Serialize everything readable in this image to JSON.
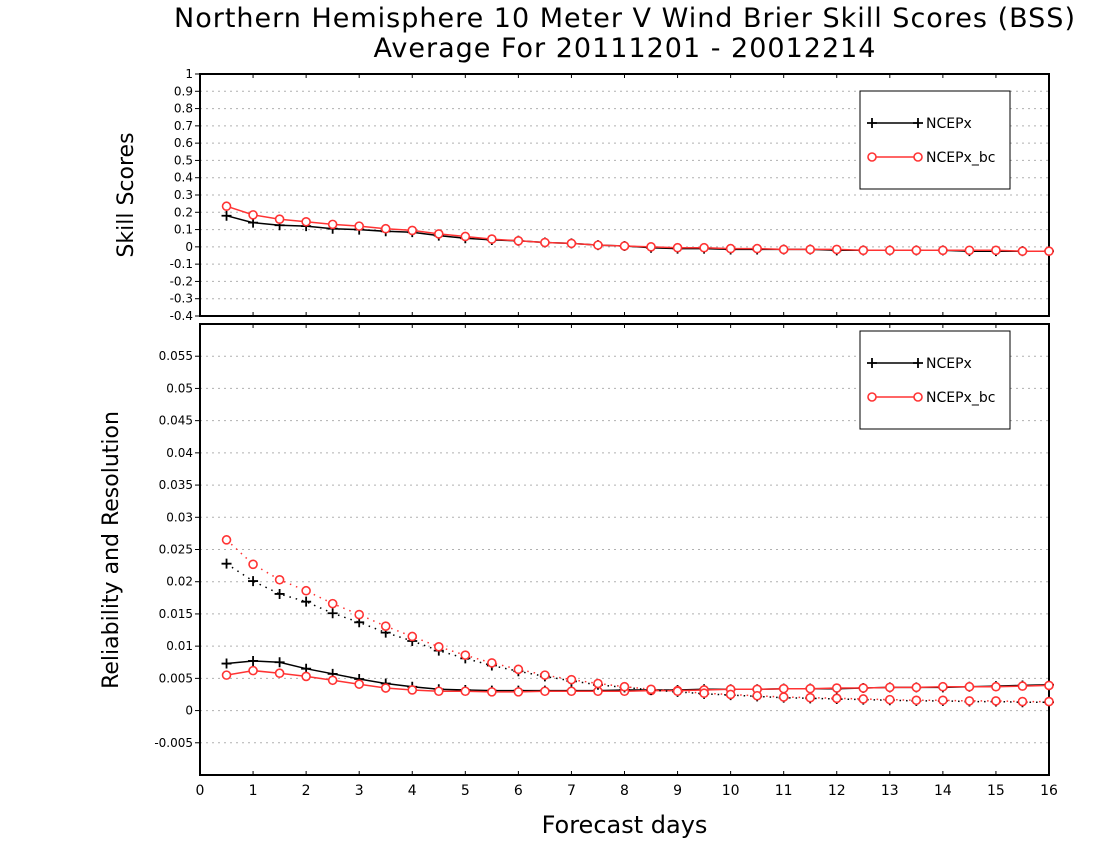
{
  "title_line1": "Northern Hemisphere 10 Meter V Wind Brier Skill Scores (BSS)",
  "title_line2": "Average For 20111201 - 20012214",
  "chart_data": [
    {
      "type": "line",
      "ylabel": "Skill Scores",
      "xlabel": "",
      "xlim": [
        0,
        16
      ],
      "ylim": [
        -0.4,
        1
      ],
      "yticks": [
        -0.4,
        -0.3,
        -0.2,
        -0.1,
        0,
        0.1,
        0.2,
        0.3,
        0.4,
        0.5,
        0.6,
        0.7,
        0.8,
        0.9,
        1
      ],
      "legend_position": "top-right",
      "x": [
        0.5,
        1,
        1.5,
        2,
        2.5,
        3,
        3.5,
        4,
        4.5,
        5,
        5.5,
        6,
        6.5,
        7,
        7.5,
        8,
        8.5,
        9,
        9.5,
        10,
        10.5,
        11,
        11.5,
        12,
        12.5,
        13,
        13.5,
        14,
        14.5,
        15,
        15.5,
        16
      ],
      "series": [
        {
          "name": "NCEPx",
          "color": "#000000",
          "marker": "plus",
          "style": "solid",
          "values": [
            0.18,
            0.14,
            0.125,
            0.12,
            0.105,
            0.1,
            0.09,
            0.085,
            0.065,
            0.05,
            0.04,
            0.035,
            0.025,
            0.02,
            0.01,
            0.005,
            -0.005,
            -0.01,
            -0.01,
            -0.015,
            -0.015,
            -0.015,
            -0.015,
            -0.02,
            -0.02,
            -0.02,
            -0.02,
            -0.02,
            -0.025,
            -0.025,
            -0.025,
            -0.025
          ]
        },
        {
          "name": "NCEPx_bc",
          "color": "#ff3333",
          "marker": "circle",
          "style": "solid",
          "values": [
            0.235,
            0.185,
            0.16,
            0.145,
            0.13,
            0.12,
            0.105,
            0.095,
            0.075,
            0.06,
            0.045,
            0.035,
            0.025,
            0.02,
            0.01,
            0.005,
            0.0,
            -0.005,
            -0.005,
            -0.01,
            -0.01,
            -0.015,
            -0.015,
            -0.015,
            -0.02,
            -0.02,
            -0.02,
            -0.02,
            -0.02,
            -0.02,
            -0.025,
            -0.025
          ]
        }
      ]
    },
    {
      "type": "line",
      "ylabel": "Reliability and Resolution",
      "xlabel": "Forecast days",
      "xlim": [
        0,
        16
      ],
      "ylim": [
        -0.01,
        0.06
      ],
      "yticks": [
        -0.005,
        0,
        0.005,
        0.01,
        0.015,
        0.02,
        0.025,
        0.03,
        0.035,
        0.04,
        0.045,
        0.05,
        0.055
      ],
      "xticks": [
        0,
        1,
        2,
        3,
        4,
        5,
        6,
        7,
        8,
        9,
        10,
        11,
        12,
        13,
        14,
        15,
        16
      ],
      "legend_position": "top-right",
      "x": [
        0.5,
        1,
        1.5,
        2,
        2.5,
        3,
        3.5,
        4,
        4.5,
        5,
        5.5,
        6,
        6.5,
        7,
        7.5,
        8,
        8.5,
        9,
        9.5,
        10,
        10.5,
        11,
        11.5,
        12,
        12.5,
        13,
        13.5,
        14,
        14.5,
        15,
        15.5,
        16
      ],
      "series": [
        {
          "name": "NCEPx",
          "color": "#000000",
          "marker": "plus",
          "style": "solid",
          "legend": true,
          "values": [
            0.0073,
            0.0077,
            0.0075,
            0.0065,
            0.0057,
            0.0049,
            0.0042,
            0.0037,
            0.0033,
            0.0032,
            0.0031,
            0.0031,
            0.0031,
            0.0031,
            0.0031,
            0.0032,
            0.0032,
            0.0032,
            0.0033,
            0.0033,
            0.0033,
            0.0034,
            0.0034,
            0.0034,
            0.0035,
            0.0036,
            0.0036,
            0.0036,
            0.0037,
            0.0038,
            0.0039,
            0.004
          ]
        },
        {
          "name": "NCEPx_bc",
          "color": "#ff3333",
          "marker": "circle",
          "style": "solid",
          "legend": true,
          "values": [
            0.0055,
            0.0062,
            0.0058,
            0.0053,
            0.0047,
            0.0041,
            0.0035,
            0.0032,
            0.003,
            0.003,
            0.0029,
            0.0029,
            0.003,
            0.003,
            0.003,
            0.003,
            0.0031,
            0.0031,
            0.0032,
            0.0033,
            0.0033,
            0.0034,
            0.0034,
            0.0035,
            0.0035,
            0.0036,
            0.0036,
            0.0037,
            0.0037,
            0.0037,
            0.0038,
            0.0039
          ]
        },
        {
          "name": "NCEPx",
          "color": "#000000",
          "marker": "plus",
          "style": "dotted",
          "legend": false,
          "values": [
            0.0228,
            0.0201,
            0.0181,
            0.0169,
            0.0151,
            0.0137,
            0.0121,
            0.0108,
            0.0093,
            0.0081,
            0.007,
            0.0061,
            0.0053,
            0.0046,
            0.004,
            0.0036,
            0.0032,
            0.0029,
            0.0026,
            0.0024,
            0.0022,
            0.002,
            0.0019,
            0.0018,
            0.0017,
            0.0016,
            0.0015,
            0.0015,
            0.0014,
            0.0014,
            0.0013,
            0.0013
          ]
        },
        {
          "name": "NCEPx_bc",
          "color": "#ff3333",
          "marker": "circle",
          "style": "dotted",
          "legend": false,
          "values": [
            0.0265,
            0.0227,
            0.0203,
            0.0186,
            0.0166,
            0.0149,
            0.0131,
            0.0115,
            0.0099,
            0.0086,
            0.0074,
            0.0064,
            0.0055,
            0.0048,
            0.0042,
            0.0037,
            0.0033,
            0.003,
            0.0027,
            0.0025,
            0.0023,
            0.0021,
            0.002,
            0.0019,
            0.0018,
            0.0017,
            0.0016,
            0.0016,
            0.0015,
            0.0015,
            0.0014,
            0.0014
          ]
        }
      ]
    }
  ]
}
